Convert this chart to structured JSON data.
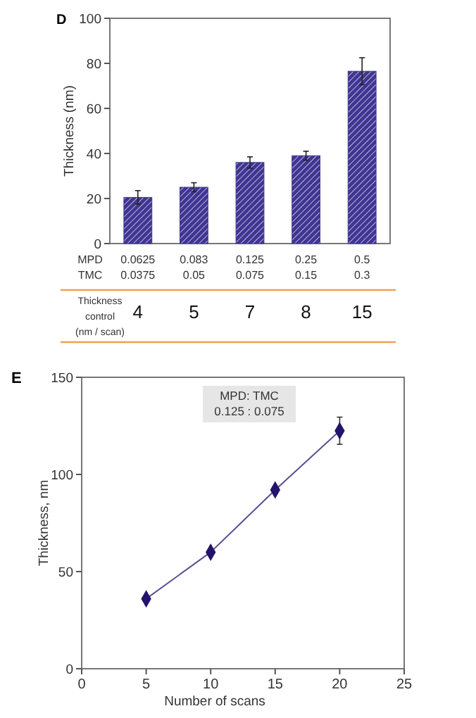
{
  "chart_data": [
    {
      "type": "bar",
      "title": "D",
      "ylabel": "Thickness (nm)",
      "categories": [
        "0.0625",
        "0.083",
        "0.125",
        "0.25",
        "0.5"
      ],
      "values": [
        20.5,
        25,
        36,
        39,
        76.5
      ],
      "errors": [
        3,
        2,
        2.5,
        2,
        6
      ],
      "color": "#3f3592",
      "ylim": [
        0,
        100
      ],
      "yticks": [
        0,
        20,
        40,
        60,
        80,
        100
      ],
      "annotations": [
        "MPD",
        "TMC",
        "0.0375",
        "0.05",
        "0.075",
        "0.15",
        "0.3",
        "Thickness control (nm / scan)",
        "4",
        "5",
        "7",
        "8",
        "15"
      ]
    },
    {
      "type": "line",
      "title": "E",
      "xlabel": "Number of scans",
      "ylabel": "Thickness, nm",
      "x": [
        5,
        10,
        15,
        20
      ],
      "series": [
        {
          "color": "#24136b",
          "values": [
            36,
            60,
            92,
            122.5
          ],
          "errors": [
            null,
            null,
            null,
            7
          ]
        }
      ],
      "marker": "diamond",
      "xlim": [
        0,
        25
      ],
      "xticks": [
        0,
        5,
        10,
        15,
        20,
        25
      ],
      "ylim": [
        0,
        150
      ],
      "yticks": [
        0,
        50,
        100,
        150
      ],
      "annotations": [
        "MPD: TMC",
        "0.125 : 0.075"
      ]
    }
  ]
}
